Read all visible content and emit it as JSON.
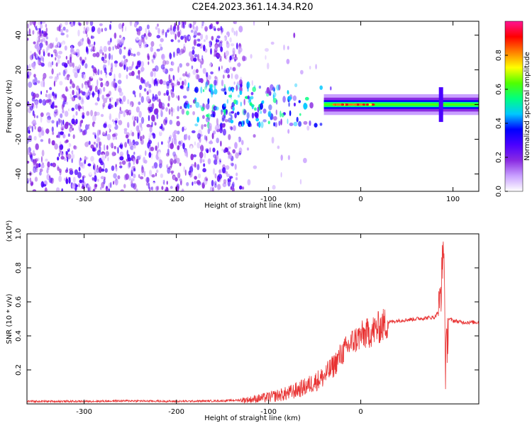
{
  "figure": {
    "title": "C2E4.2023.361.14.34.R20"
  },
  "chart_data": [
    {
      "type": "heatmap",
      "xlabel": "Height of straight line (km)",
      "ylabel": "Frequency (Hz)",
      "xlim": [
        -362,
        128
      ],
      "ylim": [
        -50,
        48
      ],
      "xticks": [
        -300,
        -200,
        -100,
        0,
        100
      ],
      "yticks": [
        -40,
        -20,
        0,
        20,
        40
      ],
      "colorbar": {
        "label": "Normalized spectral amplitude",
        "range": [
          0,
          1
        ],
        "ticks": [
          "0.0",
          "0.2",
          "0.4",
          "0.6",
          "0.8"
        ],
        "colormap": [
          "#ffffff",
          "#c9a0ff",
          "#8a2be2",
          "#4b00ff",
          "#0000ff",
          "#00c8ff",
          "#00ff80",
          "#50ff00",
          "#ffff00",
          "#ff8000",
          "#ff0000",
          "#ff1493"
        ]
      },
      "features": {
        "line_center_hz": 0,
        "line_start_km": -40,
        "line_end_km": 128,
        "spike_km": 87
      }
    },
    {
      "type": "line",
      "xlabel": "Height of straight line (km)",
      "ylabel": "SNR (10 * v/v)",
      "ymultiplier": "(x10⁴)",
      "xlim": [
        -362,
        128
      ],
      "ylim": [
        0,
        1.0
      ],
      "xticks": [
        -300,
        -200,
        -100,
        0
      ],
      "yticks": [
        0.2,
        0.4,
        0.6,
        0.8,
        1.0
      ],
      "series": [
        {
          "color": "#e83232",
          "x": [
            -362,
            -300,
            -250,
            -200,
            -150,
            -120,
            -100,
            -80,
            -60,
            -40,
            -30,
            -20,
            -10,
            0,
            10,
            20,
            30,
            40,
            60,
            80,
            85,
            88,
            90,
            92,
            95,
            100,
            110,
            128
          ],
          "y": [
            0.015,
            0.015,
            0.018,
            0.015,
            0.018,
            0.025,
            0.04,
            0.06,
            0.1,
            0.16,
            0.22,
            0.3,
            0.36,
            0.4,
            0.42,
            0.45,
            0.48,
            0.49,
            0.5,
            0.51,
            0.55,
            0.75,
            0.98,
            0.2,
            0.5,
            0.49,
            0.48,
            0.48
          ]
        }
      ]
    }
  ]
}
